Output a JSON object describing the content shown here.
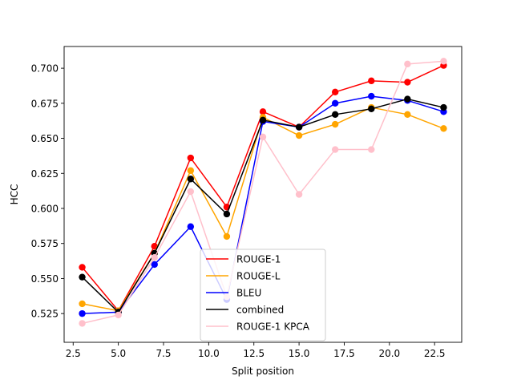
{
  "chart_data": {
    "type": "line",
    "xlabel": "Split position",
    "ylabel": "HCC",
    "xlim": [
      2.0,
      24.0
    ],
    "ylim": [
      0.5045,
      0.7155
    ],
    "xticks": [
      2.5,
      5.0,
      7.5,
      10.0,
      12.5,
      15.0,
      17.5,
      20.0,
      22.5
    ],
    "xtick_labels": [
      "2.5",
      "5.0",
      "7.5",
      "10.0",
      "12.5",
      "15.0",
      "17.5",
      "20.0",
      "22.5"
    ],
    "yticks": [
      0.525,
      0.55,
      0.575,
      0.6,
      0.625,
      0.65,
      0.675,
      0.7
    ],
    "ytick_labels": [
      "0.525",
      "0.550",
      "0.575",
      "0.600",
      "0.625",
      "0.650",
      "0.675",
      "0.700"
    ],
    "grid": false,
    "legend_position": "lower center",
    "x": [
      3,
      5,
      7,
      9,
      11,
      13,
      15,
      17,
      19,
      21,
      23
    ],
    "series": [
      {
        "name": "ROUGE-1",
        "color": "#ff0000",
        "values": [
          0.558,
          0.527,
          0.573,
          0.636,
          0.601,
          0.669,
          0.658,
          0.683,
          0.691,
          0.69,
          0.702
        ]
      },
      {
        "name": "ROUGE-L",
        "color": "#ffa500",
        "values": [
          0.532,
          0.527,
          0.568,
          0.627,
          0.58,
          0.665,
          0.652,
          0.66,
          0.672,
          0.667,
          0.657
        ]
      },
      {
        "name": "BLEU",
        "color": "#0000ff",
        "values": [
          0.525,
          0.526,
          0.56,
          0.587,
          0.535,
          0.662,
          0.658,
          0.675,
          0.68,
          0.677,
          0.669
        ]
      },
      {
        "name": "combined",
        "color": "#000000",
        "values": [
          0.551,
          0.526,
          0.568,
          0.621,
          0.596,
          0.663,
          0.658,
          0.667,
          0.671,
          0.678,
          0.672
        ]
      },
      {
        "name": "ROUGE-1 KPCA",
        "color": "#ffc0cb",
        "values": [
          0.518,
          0.524,
          0.565,
          0.612,
          0.537,
          0.651,
          0.61,
          0.642,
          0.642,
          0.703,
          0.705
        ]
      }
    ]
  }
}
